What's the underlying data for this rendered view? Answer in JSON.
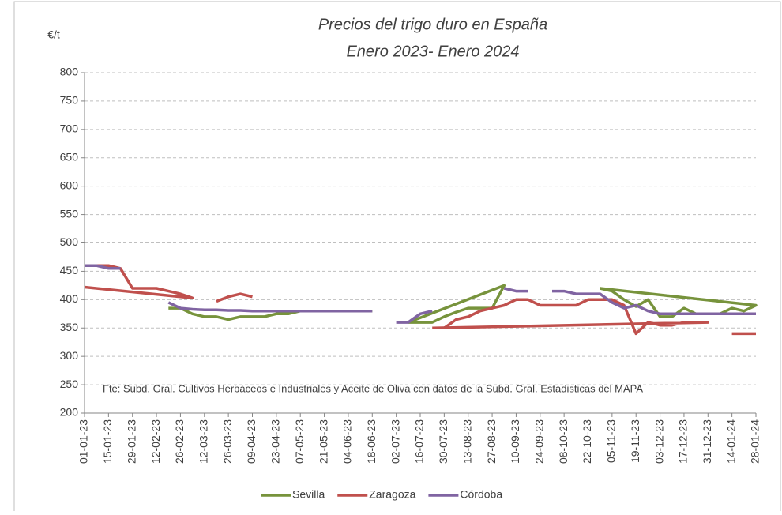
{
  "chart_data": {
    "type": "line",
    "title": "Precios del trigo duro en España",
    "subtitle": "Enero 2023- Enero 2024",
    "y_label": "€/t",
    "annotation": "Fte: Subd. Gral. Cultivos Herbáceos e Industriales y Aceite de Oliva con datos de la Subd. Gral. Estadisticas del MAPA",
    "ylim": [
      200,
      800
    ],
    "yticks": [
      200,
      250,
      300,
      350,
      400,
      450,
      500,
      550,
      600,
      650,
      700,
      750,
      800
    ],
    "xlim": [
      "01-01-23",
      "28-01-24"
    ],
    "xticks": [
      "01-01-23",
      "15-01-23",
      "29-01-23",
      "12-02-23",
      "26-02-23",
      "12-03-23",
      "26-03-23",
      "09-04-23",
      "23-04-23",
      "07-05-23",
      "21-05-23",
      "04-06-23",
      "18-06-23",
      "02-07-23",
      "16-07-23",
      "30-07-23",
      "13-08-23",
      "27-08-23",
      "10-09-23",
      "24-09-23",
      "08-10-23",
      "22-10-23",
      "05-11-23",
      "19-11-23",
      "03-12-23",
      "17-12-23",
      "31-12-23",
      "14-01-24",
      "28-01-24"
    ],
    "grid": true,
    "legend": "bottom",
    "series": [
      {
        "name": "Sevilla",
        "color": "#77933c",
        "x": [
          "19-02-23",
          "26-02-23",
          "05-03-23",
          "12-03-23",
          "19-03-23",
          "26-03-23",
          "02-04-23",
          "09-04-23",
          "16-04-23",
          "23-04-23",
          "30-04-23",
          "07-05-23",
          "14-05-23",
          "21-05-23",
          "28-05-23",
          "04-06-23",
          "11-06-23",
          "18-06-23",
          null,
          "09-07-23",
          "16-07-23",
          "23-07-23",
          "30-07-23",
          "06-08-23",
          "13-08-23",
          "20-08-23",
          "27-08-23",
          "03-09-23",
          "09-07-23",
          null,
          "29-10-23",
          "05-11-23",
          "12-11-23",
          "19-11-23",
          "26-11-23",
          "03-12-23",
          "10-12-23",
          "17-12-23",
          "24-12-23",
          "31-12-23",
          "07-01-24",
          "14-01-24",
          "21-01-24",
          "28-01-24",
          "29-10-23"
        ],
        "values": [
          385,
          385,
          375,
          370,
          370,
          365,
          370,
          370,
          370,
          375,
          375,
          380,
          380,
          380,
          380,
          380,
          380,
          380,
          null,
          360,
          360,
          360,
          370,
          378,
          385,
          385,
          385,
          425,
          360,
          null,
          420,
          415,
          400,
          388,
          400,
          370,
          370,
          385,
          375,
          375,
          375,
          385,
          380,
          390,
          420
        ]
      },
      {
        "name": "Zaragoza",
        "color": "#c0504d",
        "x": [
          "01-01-23",
          "08-01-23",
          "15-01-23",
          "22-01-23",
          "29-01-23",
          "05-02-23",
          "12-02-23",
          "19-02-23",
          "26-02-23",
          "05-03-23",
          "01-01-23",
          null,
          "19-03-23",
          "26-03-23",
          "02-04-23",
          "09-04-23",
          null,
          "23-07-23",
          "30-07-23",
          "06-08-23",
          "13-08-23",
          "20-08-23",
          "27-08-23",
          "03-09-23",
          "10-09-23",
          "17-09-23",
          "24-09-23",
          "01-10-23",
          "08-10-23",
          "15-10-23",
          "22-10-23",
          "29-10-23",
          "05-11-23",
          "12-11-23",
          "19-11-23",
          "26-11-23",
          "03-12-23",
          "10-12-23",
          "17-12-23",
          "24-12-23",
          "31-12-23",
          "23-07-23",
          null,
          "14-01-24",
          "21-01-24",
          "28-01-24"
        ],
        "values": [
          460,
          460,
          460,
          455,
          420,
          420,
          420,
          415,
          410,
          403,
          422,
          null,
          397,
          405,
          410,
          405,
          null,
          350,
          350,
          365,
          370,
          380,
          385,
          390,
          400,
          400,
          390,
          390,
          390,
          390,
          400,
          400,
          400,
          390,
          340,
          360,
          355,
          355,
          360,
          360,
          360,
          350,
          null,
          340,
          340,
          340
        ]
      },
      {
        "name": "Córdoba",
        "color": "#8064a2",
        "x": [
          "01-01-23",
          "08-01-23",
          "15-01-23",
          "22-01-23",
          null,
          "19-02-23",
          "26-02-23",
          "05-03-23",
          "12-03-23",
          "19-03-23",
          "26-03-23",
          "02-04-23",
          "09-04-23",
          "16-04-23",
          "23-04-23",
          "30-04-23",
          "07-05-23",
          "14-05-23",
          "21-05-23",
          "28-05-23",
          "04-06-23",
          "11-06-23",
          "18-06-23",
          null,
          "02-07-23",
          "09-07-23",
          "16-07-23",
          "23-07-23",
          null,
          "03-09-23",
          "10-09-23",
          "17-09-23",
          null,
          "01-10-23",
          "08-10-23",
          "15-10-23",
          "22-10-23",
          "29-10-23",
          "05-11-23",
          "12-11-23",
          "19-11-23",
          "26-11-23",
          "03-12-23",
          "10-12-23",
          "17-12-23",
          "24-12-23",
          "31-12-23",
          "07-01-24",
          "14-01-24",
          "21-01-24",
          "28-01-24"
        ],
        "values": [
          460,
          460,
          455,
          455,
          null,
          395,
          385,
          383,
          382,
          382,
          381,
          381,
          380,
          380,
          380,
          380,
          380,
          380,
          380,
          380,
          380,
          380,
          380,
          null,
          360,
          360,
          375,
          380,
          null,
          420,
          415,
          415,
          null,
          415,
          415,
          410,
          410,
          410,
          395,
          385,
          390,
          380,
          375,
          375,
          375,
          375,
          375,
          375,
          375,
          375,
          375
        ]
      }
    ]
  }
}
